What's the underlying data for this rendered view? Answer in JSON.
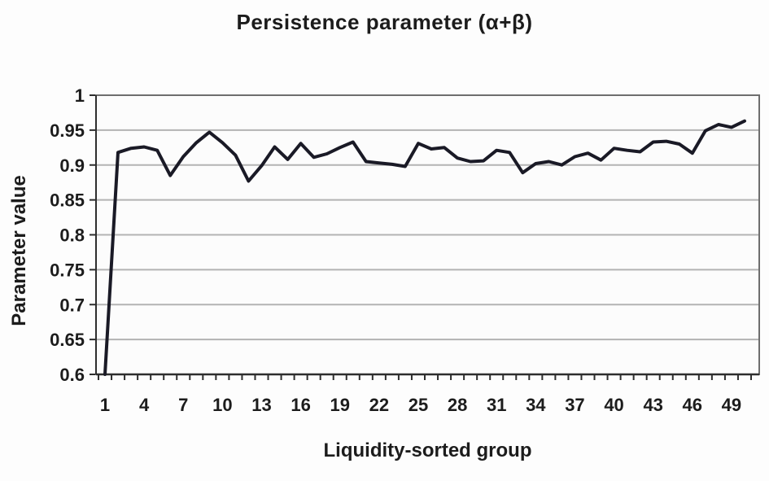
{
  "chart_data": {
    "type": "line",
    "title": "Persistence parameter (α+β)",
    "xlabel": "Liquidity-sorted group",
    "ylabel": "Parameter value",
    "x": [
      1,
      2,
      3,
      4,
      5,
      6,
      7,
      8,
      9,
      10,
      11,
      12,
      13,
      14,
      15,
      16,
      17,
      18,
      19,
      20,
      21,
      22,
      23,
      24,
      25,
      26,
      27,
      28,
      29,
      30,
      31,
      32,
      33,
      34,
      35,
      36,
      37,
      38,
      39,
      40,
      41,
      42,
      43,
      44,
      45,
      46,
      47,
      48,
      49,
      50
    ],
    "values": [
      0.6,
      0.918,
      0.924,
      0.926,
      0.921,
      0.885,
      0.912,
      0.932,
      0.947,
      0.932,
      0.914,
      0.877,
      0.899,
      0.926,
      0.908,
      0.931,
      0.911,
      0.916,
      0.925,
      0.933,
      0.905,
      0.903,
      0.901,
      0.898,
      0.931,
      0.923,
      0.925,
      0.91,
      0.905,
      0.906,
      0.921,
      0.918,
      0.889,
      0.902,
      0.905,
      0.9,
      0.912,
      0.917,
      0.907,
      0.924,
      0.921,
      0.919,
      0.933,
      0.934,
      0.93,
      0.917,
      0.949,
      0.958,
      0.954,
      0.963
    ],
    "ylim": [
      0.6,
      1.0
    ],
    "ytick_values": [
      1,
      0.95,
      0.9,
      0.85,
      0.8,
      0.75,
      0.7,
      0.65,
      0.6
    ],
    "ytick_labels": [
      "1",
      "0.95",
      "0.9",
      "0.85",
      "0.8",
      "0.75",
      "0.7",
      "0.65",
      "0.6"
    ],
    "xtick_labels": [
      "1",
      "4",
      "7",
      "10",
      "13",
      "16",
      "19",
      "22",
      "25",
      "28",
      "31",
      "34",
      "37",
      "40",
      "43",
      "46",
      "49"
    ],
    "xtick_label_values": [
      1,
      4,
      7,
      10,
      13,
      16,
      19,
      22,
      25,
      28,
      31,
      34,
      37,
      40,
      43,
      46,
      49
    ],
    "grid": "horizontal",
    "legend": "none",
    "colors": {
      "line": "#1a1a26",
      "grid": "#b3b3b3",
      "border": "#6e6e6e",
      "axis": "#2e2e2e",
      "text": "#1c1c1c",
      "background": "#fdfdfd"
    }
  }
}
